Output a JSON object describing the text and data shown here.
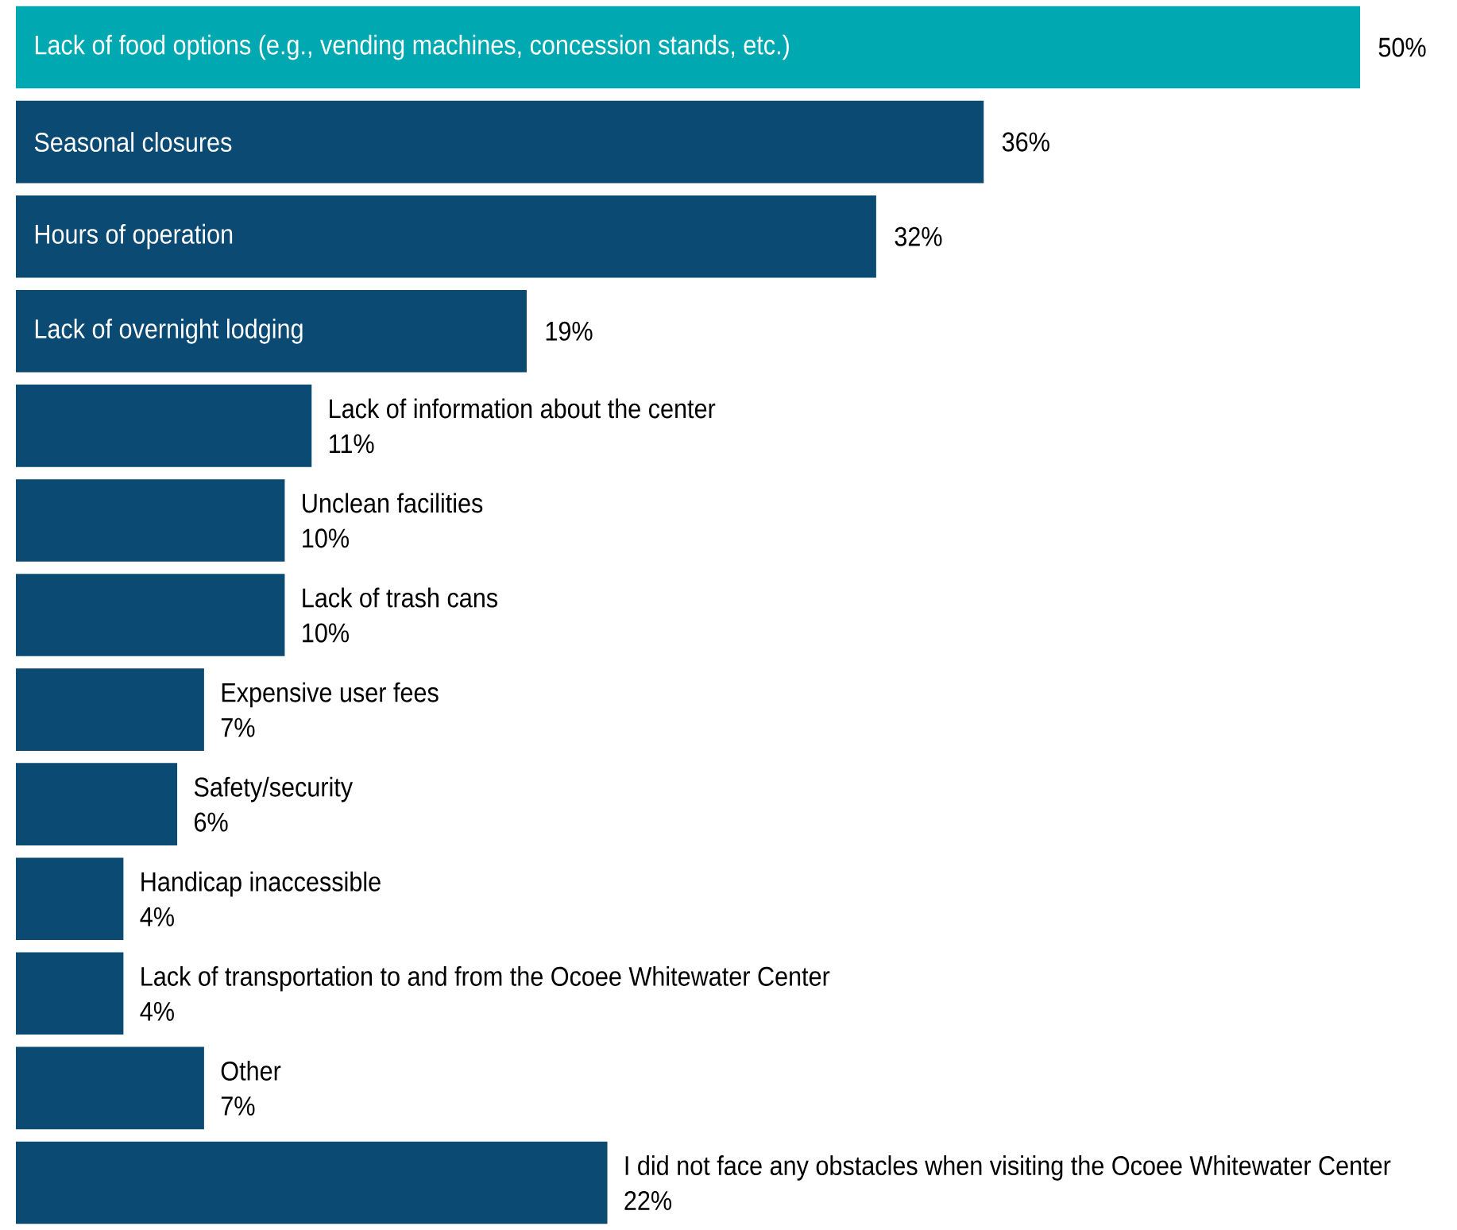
{
  "chart_data": {
    "type": "bar",
    "orientation": "horizontal",
    "categories": [
      "Lack of food options (e.g., vending machines, concession stands, etc.)",
      "Seasonal closures",
      "Hours of operation",
      "Lack of overnight lodging",
      "Lack of information about the center",
      "Unclean facilities",
      "Lack of trash cans",
      "Expensive user fees",
      "Safety/security",
      "Handicap inaccessible",
      "Lack of transportation to and from the Ocoee Whitewater Center",
      "Other",
      "I did not face any obstacles when visiting the Ocoee Whitewater Center"
    ],
    "values": [
      50,
      36,
      32,
      19,
      11,
      10,
      10,
      7,
      6,
      4,
      4,
      7,
      22
    ],
    "value_labels": [
      "50%",
      "36%",
      "32%",
      "19%",
      "11%",
      "10%",
      "10%",
      "7%",
      "6%",
      "4%",
      "4%",
      "7%",
      "22%"
    ],
    "colors": [
      "#00a8b1",
      "#0a4a73",
      "#0a4a73",
      "#0a4a73",
      "#0a4a73",
      "#0a4a73",
      "#0a4a73",
      "#0a4a73",
      "#0a4a73",
      "#0a4a73",
      "#0a4a73",
      "#0a4a73",
      "#0a4a73"
    ]
  }
}
